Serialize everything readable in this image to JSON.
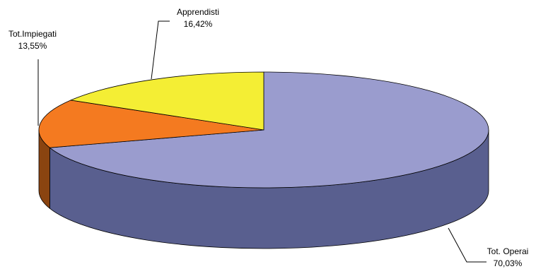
{
  "chart_data": {
    "type": "pie",
    "style": "3d",
    "title": "",
    "slices": [
      {
        "label": "Tot. Operai",
        "value": 70.03,
        "value_label": "70,03%",
        "color": "#9a9cce",
        "side_color": "#595f8f"
      },
      {
        "label": "Tot.Impiegati",
        "value": 13.55,
        "value_label": "13,55%",
        "color": "#f47a20",
        "side_color": "#8a4410"
      },
      {
        "label": "Apprendisti",
        "value": 16.42,
        "value_label": "16,42%",
        "color": "#f4ee34",
        "side_color": "#8f8a1c"
      }
    ],
    "legend": "none",
    "data_labels": "outside-with-leaders"
  }
}
